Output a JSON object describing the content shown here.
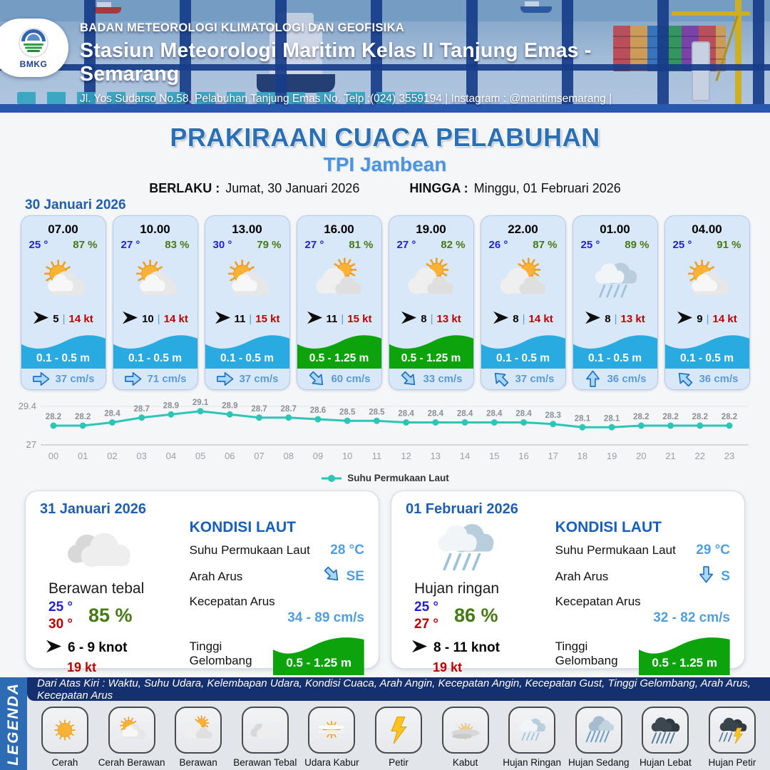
{
  "header": {
    "logo_text": "BMKG",
    "agency": "BADAN METEOROLOGI KLIMATOLOGI DAN GEOFISIKA",
    "station": "Stasiun Meteorologi Maritim Kelas II Tanjung Emas - Semarang",
    "address": "Jl. Yos Sudarso No.58, Pelabuhan Tanjung Emas No. Telp :(024) 3559194 | Instagram : @maritimsemarang |"
  },
  "title": {
    "main": "PRAKIRAAN CUACA PELABUHAN",
    "location": "TPI Jambean",
    "valid_from_label": "BERLAKU :",
    "valid_from": "Jumat, 30 Januari 2026",
    "valid_to_label": "HINGGA :",
    "valid_to": "Minggu, 01 Februari 2026",
    "date": "30 Januari 2026"
  },
  "hourly": [
    {
      "time": "07.00",
      "temp": "25 °",
      "humidity": "87 %",
      "icon": "cerah-berawan",
      "wind_speed": "5",
      "gust": "14 kt",
      "wave": "0.1 - 0.5 m",
      "wave_color": "blue",
      "current_dir": "E",
      "current_speed": "37 cm/s"
    },
    {
      "time": "10.00",
      "temp": "27 °",
      "humidity": "83 %",
      "icon": "cerah-berawan",
      "wind_speed": "10",
      "gust": "14 kt",
      "wave": "0.1 - 0.5 m",
      "wave_color": "blue",
      "current_dir": "E",
      "current_speed": "71 cm/s"
    },
    {
      "time": "13.00",
      "temp": "30 °",
      "humidity": "79 %",
      "icon": "cerah-berawan",
      "wind_speed": "11",
      "gust": "15 kt",
      "wave": "0.1 - 0.5 m",
      "wave_color": "blue",
      "current_dir": "E",
      "current_speed": "37 cm/s"
    },
    {
      "time": "16.00",
      "temp": "27 °",
      "humidity": "81 %",
      "icon": "berawan",
      "wind_speed": "11",
      "gust": "15 kt",
      "wave": "0.5 - 1.25 m",
      "wave_color": "green",
      "current_dir": "SE",
      "current_speed": "60 cm/s"
    },
    {
      "time": "19.00",
      "temp": "27 °",
      "humidity": "82 %",
      "icon": "berawan",
      "wind_speed": "8",
      "gust": "13 kt",
      "wave": "0.5 - 1.25 m",
      "wave_color": "green",
      "current_dir": "SE",
      "current_speed": "33 cm/s"
    },
    {
      "time": "22.00",
      "temp": "26 °",
      "humidity": "87 %",
      "icon": "berawan",
      "wind_speed": "8",
      "gust": "14 kt",
      "wave": "0.1 - 0.5 m",
      "wave_color": "blue",
      "current_dir": "NW",
      "current_speed": "37 cm/s"
    },
    {
      "time": "01.00",
      "temp": "25 °",
      "humidity": "89 %",
      "icon": "hujan-ringan",
      "wind_speed": "8",
      "gust": "13 kt",
      "wave": "0.1 - 0.5 m",
      "wave_color": "blue",
      "current_dir": "N",
      "current_speed": "36 cm/s"
    },
    {
      "time": "04.00",
      "temp": "25 °",
      "humidity": "91 %",
      "icon": "cerah-berawan",
      "wind_speed": "9",
      "gust": "14 kt",
      "wave": "0.1 - 0.5 m",
      "wave_color": "blue",
      "current_dir": "NW",
      "current_speed": "36 cm/s"
    }
  ],
  "chart_data": {
    "type": "line",
    "x": [
      "00",
      "01",
      "02",
      "03",
      "04",
      "05",
      "06",
      "07",
      "08",
      "09",
      "10",
      "11",
      "12",
      "13",
      "14",
      "15",
      "16",
      "17",
      "18",
      "19",
      "20",
      "21",
      "22",
      "23"
    ],
    "series": [
      {
        "name": "Suhu Permukaan Laut",
        "values": [
          28.2,
          28.2,
          28.4,
          28.7,
          28.9,
          29.1,
          28.9,
          28.7,
          28.7,
          28.6,
          28.5,
          28.5,
          28.4,
          28.4,
          28.4,
          28.4,
          28.4,
          28.3,
          28.1,
          28.1,
          28.2,
          28.2,
          28.2,
          28.2
        ]
      }
    ],
    "ylim": [
      27,
      29.4
    ],
    "y_tick_labels": [
      "27",
      "29.4"
    ],
    "line_color": "#2cc5b6",
    "legend_position": "bottom",
    "grid": "top-and-bottom-lines-only"
  },
  "daily": [
    {
      "date": "31 Januari 2026",
      "icon": "berawan-tebal",
      "condition": "Berawan tebal",
      "temp_min": "25 °",
      "temp_max": "30 °",
      "humidity": "85 %",
      "wind": "6  - 9 knot",
      "gust": "19 kt",
      "sea": {
        "heading": "KONDISI LAUT",
        "sst_label": "Suhu Permukaan Laut",
        "sst": "28 °C",
        "current_dir_label": "Arah Arus",
        "current_dir": "SE",
        "current_speed_label": "Kecepatan Arus",
        "current_speed": "34  - 89 cm/s",
        "wave_label": "Tinggi Gelombang",
        "wave": "0.5 - 1.25 m"
      }
    },
    {
      "date": "01 Februari 2026",
      "icon": "hujan-ringan",
      "condition": "Hujan ringan",
      "temp_min": "25 °",
      "temp_max": "27 °",
      "humidity": "86 %",
      "wind": "8  - 11 knot",
      "gust": "19 kt",
      "sea": {
        "heading": "KONDISI LAUT",
        "sst_label": "Suhu Permukaan Laut",
        "sst": "29 °C",
        "current_dir_label": "Arah Arus",
        "current_dir": "S",
        "current_speed_label": "Kecepatan Arus",
        "current_speed": "32 - 82 cm/s",
        "wave_label": "Tinggi Gelombang",
        "wave": "0.5 - 1.25 m"
      }
    }
  ],
  "legend": {
    "label": "LEGENDA",
    "note": "Dari Atas Kiri : Waktu, Suhu Udara, Kelembapan Udara, Kondisi Cuaca, Arah Angin, Kecepatan Angin, Kecepatan Gust, Tinggi Gelombang, Arah Arus, Kecepatan Arus",
    "items": [
      {
        "name": "Cerah",
        "icon": "cerah"
      },
      {
        "name": "Cerah Berawan",
        "icon": "cerah-berawan"
      },
      {
        "name": "Berawan",
        "icon": "berawan"
      },
      {
        "name": "Berawan Tebal",
        "icon": "berawan-tebal"
      },
      {
        "name": "Udara Kabur",
        "icon": "udara-kabur"
      },
      {
        "name": "Petir",
        "icon": "petir"
      },
      {
        "name": "Kabut",
        "icon": "kabut"
      },
      {
        "name": "Hujan Ringan",
        "icon": "hujan-ringan"
      },
      {
        "name": "Hujan Sedang",
        "icon": "hujan-sedang"
      },
      {
        "name": "Hujan Lebat",
        "icon": "hujan-lebat"
      },
      {
        "name": "Hujan Petir",
        "icon": "hujan-petir"
      }
    ]
  },
  "colors": {
    "wave_blue": "#29abe2",
    "wave_green": "#0ca30c",
    "temp_blue": "#2020dd",
    "humidity_green": "#467a12",
    "gust_red": "#c00000",
    "current_text_blue": "#5b9bd5",
    "title_blue": "#2b6fb5",
    "subtitle_blue": "#4b94e0",
    "chart_teal": "#2cc5b6"
  }
}
